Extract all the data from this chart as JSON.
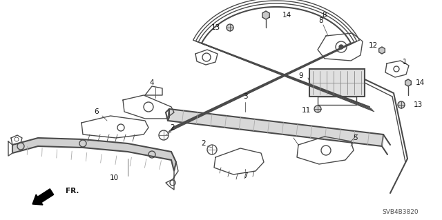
{
  "background_color": "#ffffff",
  "figure_width": 6.4,
  "figure_height": 3.19,
  "dpi": 100,
  "line_color": "#4a4a4a",
  "label_color": "#111111",
  "part_code": "SVB4B3820",
  "label_fs": 7.5,
  "small_fs": 6.5
}
